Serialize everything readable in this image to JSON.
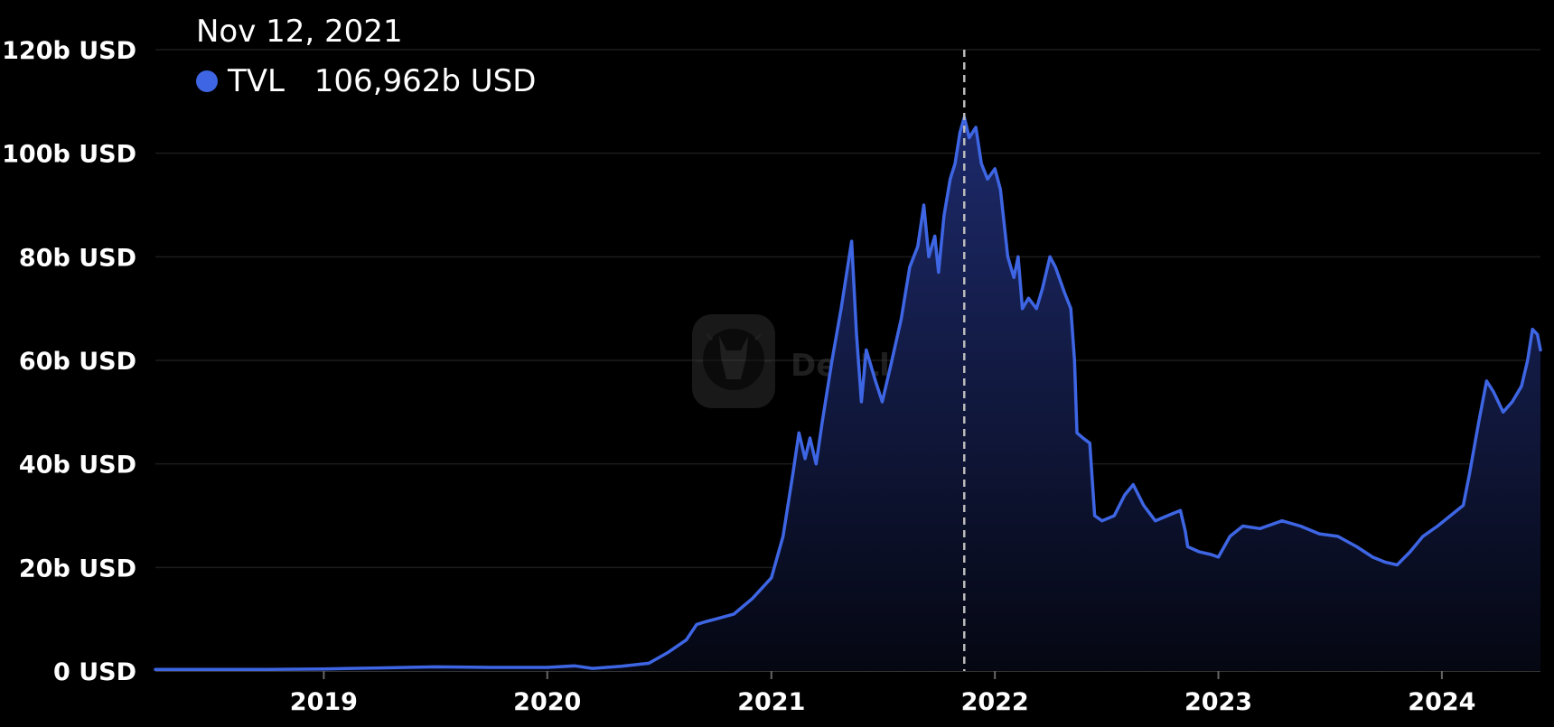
{
  "colors": {
    "background": "#000000",
    "line": "#3e66e4",
    "area_top": "#1d2a6b",
    "area_bottom": "#050712",
    "grid": "#1c1c1c",
    "hover_line": "#bbbbbb"
  },
  "tooltip": {
    "date": "Nov 12, 2021",
    "series": "TVL",
    "value": "106,962b USD"
  },
  "watermark": {
    "text": "DefiLlama",
    "icon": "llama-logo-icon"
  },
  "chart_data": {
    "type": "area",
    "x_ticks": [
      "2019",
      "2020",
      "2021",
      "2022",
      "2023",
      "2024"
    ],
    "y_ticks": [
      "0 USD",
      "20b USD",
      "40b USD",
      "60b USD",
      "80b USD",
      "100b USD",
      "120b USD"
    ],
    "y_unit": "b USD",
    "ylim": [
      0,
      120
    ],
    "xlim": [
      "2018-04-01",
      "2024-06-10"
    ],
    "grid": true,
    "hover_date": "2021-11-12",
    "series": [
      {
        "name": "TVL",
        "points": [
          [
            "2018-04-01",
            0.3
          ],
          [
            "2018-07-01",
            0.3
          ],
          [
            "2018-10-01",
            0.3
          ],
          [
            "2019-01-01",
            0.4
          ],
          [
            "2019-04-01",
            0.6
          ],
          [
            "2019-07-01",
            0.8
          ],
          [
            "2019-10-01",
            0.7
          ],
          [
            "2020-01-01",
            0.7
          ],
          [
            "2020-02-15",
            1.0
          ],
          [
            "2020-03-15",
            0.5
          ],
          [
            "2020-05-01",
            0.9
          ],
          [
            "2020-06-15",
            1.5
          ],
          [
            "2020-07-15",
            3.5
          ],
          [
            "2020-08-15",
            6.0
          ],
          [
            "2020-09-01",
            9.0
          ],
          [
            "2020-09-15",
            9.5
          ],
          [
            "2020-10-01",
            10.0
          ],
          [
            "2020-11-01",
            11.0
          ],
          [
            "2020-12-01",
            14.0
          ],
          [
            "2021-01-01",
            18.0
          ],
          [
            "2021-01-20",
            26.0
          ],
          [
            "2021-02-05",
            38.0
          ],
          [
            "2021-02-15",
            46.0
          ],
          [
            "2021-02-25",
            41.0
          ],
          [
            "2021-03-05",
            45.0
          ],
          [
            "2021-03-15",
            40.0
          ],
          [
            "2021-03-25",
            48.0
          ],
          [
            "2021-04-10",
            60.0
          ],
          [
            "2021-04-25",
            70.0
          ],
          [
            "2021-05-12",
            83.0
          ],
          [
            "2021-05-20",
            65.0
          ],
          [
            "2021-05-28",
            52.0
          ],
          [
            "2021-06-05",
            62.0
          ],
          [
            "2021-06-20",
            56.0
          ],
          [
            "2021-07-01",
            52.0
          ],
          [
            "2021-07-15",
            59.0
          ],
          [
            "2021-08-01",
            68.0
          ],
          [
            "2021-08-15",
            78.0
          ],
          [
            "2021-08-28",
            82.0
          ],
          [
            "2021-09-07",
            90.0
          ],
          [
            "2021-09-15",
            80.0
          ],
          [
            "2021-09-25",
            84.0
          ],
          [
            "2021-10-01",
            77.0
          ],
          [
            "2021-10-10",
            88.0
          ],
          [
            "2021-10-20",
            95.0
          ],
          [
            "2021-10-28",
            98.0
          ],
          [
            "2021-11-05",
            104.0
          ],
          [
            "2021-11-12",
            106.962
          ],
          [
            "2021-11-20",
            103.0
          ],
          [
            "2021-12-01",
            105.0
          ],
          [
            "2021-12-10",
            98.0
          ],
          [
            "2021-12-20",
            95.0
          ],
          [
            "2022-01-01",
            97.0
          ],
          [
            "2022-01-10",
            93.0
          ],
          [
            "2022-01-22",
            80.0
          ],
          [
            "2022-02-01",
            76.0
          ],
          [
            "2022-02-08",
            80.0
          ],
          [
            "2022-02-15",
            70.0
          ],
          [
            "2022-02-25",
            72.0
          ],
          [
            "2022-03-10",
            70.0
          ],
          [
            "2022-03-20",
            74.0
          ],
          [
            "2022-04-01",
            80.0
          ],
          [
            "2022-04-10",
            78.0
          ],
          [
            "2022-04-25",
            73.0
          ],
          [
            "2022-05-05",
            70.0
          ],
          [
            "2022-05-11",
            60.0
          ],
          [
            "2022-05-15",
            46.0
          ],
          [
            "2022-05-25",
            45.0
          ],
          [
            "2022-06-05",
            44.0
          ],
          [
            "2022-06-13",
            30.0
          ],
          [
            "2022-06-25",
            29.0
          ],
          [
            "2022-07-15",
            30.0
          ],
          [
            "2022-08-01",
            34.0
          ],
          [
            "2022-08-15",
            36.0
          ],
          [
            "2022-09-01",
            32.0
          ],
          [
            "2022-09-20",
            29.0
          ],
          [
            "2022-10-10",
            30.0
          ],
          [
            "2022-10-31",
            31.0
          ],
          [
            "2022-11-08",
            27.0
          ],
          [
            "2022-11-12",
            24.0
          ],
          [
            "2022-12-01",
            23.0
          ],
          [
            "2022-12-20",
            22.5
          ],
          [
            "2023-01-01",
            22.0
          ],
          [
            "2023-01-20",
            26.0
          ],
          [
            "2023-02-10",
            28.0
          ],
          [
            "2023-03-10",
            27.5
          ],
          [
            "2023-04-15",
            29.0
          ],
          [
            "2023-05-15",
            28.0
          ],
          [
            "2023-06-15",
            26.5
          ],
          [
            "2023-07-15",
            26.0
          ],
          [
            "2023-08-15",
            24.0
          ],
          [
            "2023-09-10",
            22.0
          ],
          [
            "2023-10-01",
            21.0
          ],
          [
            "2023-10-20",
            20.5
          ],
          [
            "2023-11-10",
            23.0
          ],
          [
            "2023-12-01",
            26.0
          ],
          [
            "2023-12-25",
            28.0
          ],
          [
            "2024-01-15",
            30.0
          ],
          [
            "2024-02-05",
            32.0
          ],
          [
            "2024-02-15",
            38.0
          ],
          [
            "2024-03-01",
            48.0
          ],
          [
            "2024-03-14",
            56.0
          ],
          [
            "2024-03-25",
            54.0
          ],
          [
            "2024-04-10",
            50.0
          ],
          [
            "2024-04-25",
            52.0
          ],
          [
            "2024-05-10",
            55.0
          ],
          [
            "2024-05-20",
            60.0
          ],
          [
            "2024-05-28",
            66.0
          ],
          [
            "2024-06-05",
            65.0
          ],
          [
            "2024-06-10",
            62.0
          ]
        ]
      }
    ]
  }
}
